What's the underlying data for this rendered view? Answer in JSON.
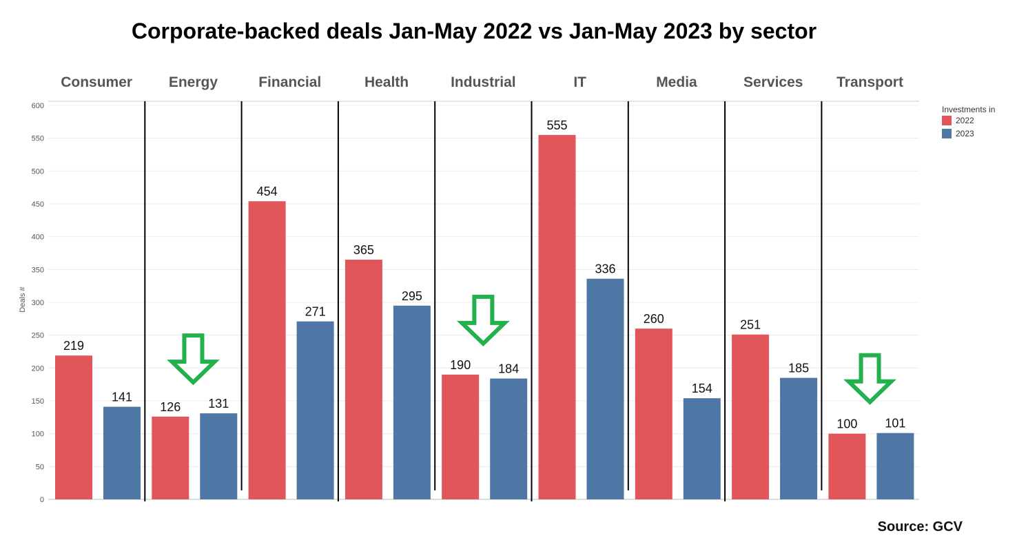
{
  "chart_data": {
    "type": "bar",
    "title": "Corporate-backed deals Jan-May 2022 vs Jan-May 2023 by sector",
    "ylabel": "Deals #",
    "xlabel": "",
    "categories": [
      "Consumer",
      "Energy",
      "Financial",
      "Health",
      "Industrial",
      "IT",
      "Media",
      "Services",
      "Transport"
    ],
    "series": [
      {
        "name": "2022",
        "color": "#e0565b",
        "values": [
          219,
          126,
          454,
          365,
          190,
          555,
          260,
          251,
          100
        ]
      },
      {
        "name": "2023",
        "color": "#4e77a5",
        "values": [
          141,
          131,
          271,
          295,
          184,
          336,
          154,
          185,
          101
        ]
      }
    ],
    "ylim": [
      0,
      600
    ],
    "yticks": [
      0,
      50,
      100,
      150,
      200,
      250,
      300,
      350,
      400,
      450,
      500,
      550,
      600
    ],
    "grid": true,
    "legend": {
      "title": "Investments in",
      "placement": "top-right"
    },
    "annotations": [
      {
        "type": "down-arrow",
        "category": "Energy",
        "color": "#22b14c"
      },
      {
        "type": "down-arrow",
        "category": "Industrial",
        "color": "#22b14c"
      },
      {
        "type": "down-arrow",
        "category": "Transport",
        "color": "#22b14c"
      }
    ]
  },
  "source": "Source: GCV"
}
